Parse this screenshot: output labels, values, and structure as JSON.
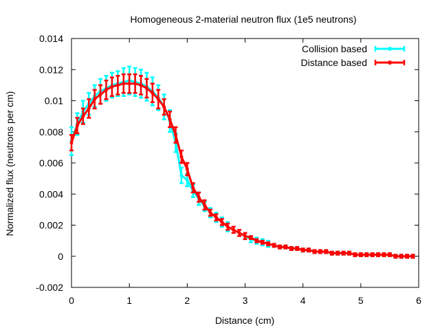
{
  "chart_data": {
    "type": "line",
    "title": "Homogeneous 2-material neutron flux (1e5 neutrons)",
    "xlabel": "Distance (cm)",
    "ylabel": "Normalized flux (neutrons per cm)",
    "xlim": [
      0,
      6
    ],
    "ylim": [
      -0.002,
      0.014
    ],
    "x_ticks": [
      "0",
      "1",
      "2",
      "3",
      "4",
      "5",
      "6"
    ],
    "y_ticks": [
      "-0.002",
      "0",
      "0.002",
      "0.004",
      "0.006",
      "0.008",
      "0.01",
      "0.012",
      "0.014"
    ],
    "grid": false,
    "legend": "top-right",
    "x": [
      0,
      0.1,
      0.2,
      0.3,
      0.4,
      0.5,
      0.6,
      0.7,
      0.8,
      0.9,
      1.0,
      1.1,
      1.2,
      1.3,
      1.4,
      1.5,
      1.6,
      1.7,
      1.8,
      1.9,
      2.0,
      2.1,
      2.2,
      2.3,
      2.4,
      2.5,
      2.6,
      2.7,
      2.8,
      2.9,
      3.0,
      3.1,
      3.2,
      3.3,
      3.4,
      3.5,
      3.6,
      3.7,
      3.8,
      3.9,
      4.0,
      4.1,
      4.2,
      4.3,
      4.4,
      4.5,
      4.6,
      4.7,
      4.8,
      4.9,
      5.0,
      5.1,
      5.2,
      5.3,
      5.4,
      5.5,
      5.6,
      5.7,
      5.8,
      5.9
    ],
    "series": [
      {
        "name": "Collision based",
        "color": "#00ffff",
        "values": [
          0.0074,
          0.0085,
          0.0093,
          0.0098,
          0.0103,
          0.0106,
          0.0108,
          0.011,
          0.0111,
          0.0112,
          0.0113,
          0.0112,
          0.0111,
          0.0109,
          0.0106,
          0.0102,
          0.0096,
          0.0087,
          0.0073,
          0.0052,
          0.0049,
          0.0042,
          0.0037,
          0.0032,
          0.0028,
          0.0025,
          0.0022,
          0.0019,
          0.0017,
          0.0015,
          0.0013,
          0.0011,
          0.001,
          0.0009,
          0.0008,
          0.0007,
          0.0006,
          0.0006,
          0.0005,
          0.0005,
          0.0004,
          0.0004,
          0.0003,
          0.0003,
          0.0003,
          0.0002,
          0.0002,
          0.0002,
          0.0002,
          0.0001,
          0.0001,
          0.0001,
          0.0001,
          0.0001,
          0.0001,
          0.0001,
          0.0,
          0.0,
          0.0,
          0.0
        ],
        "errors": [
          0.0009,
          0.0007,
          0.0007,
          0.0007,
          0.0007,
          0.0008,
          0.0008,
          0.0008,
          0.0008,
          0.0009,
          0.0009,
          0.0009,
          0.0009,
          0.0009,
          0.0009,
          0.0008,
          0.0008,
          0.0007,
          0.0006,
          0.0005,
          0.0004,
          0.0004,
          0.0004,
          0.0003,
          0.0003,
          0.0003,
          0.0003,
          0.0003,
          0.0002,
          0.0002,
          0.0002,
          0.0002,
          0.0002,
          0.0002,
          0.0002,
          0.0001,
          0.0001,
          0.0001,
          0.0001,
          0.0001,
          0.0001,
          0.0001,
          0.0001,
          0.0001,
          0.0001,
          0.0001,
          0.0001,
          0.0001,
          0.0001,
          0.0001,
          0.0001,
          0.0001,
          0.0001,
          0.0001,
          0.0001,
          0.0001,
          0.0001,
          0.0001,
          0.0001,
          0.0001
        ]
      },
      {
        "name": "Distance based",
        "color": "#ff0000",
        "values": [
          0.0073,
          0.0084,
          0.009,
          0.0095,
          0.0101,
          0.0104,
          0.0107,
          0.0109,
          0.011,
          0.0111,
          0.0111,
          0.0111,
          0.011,
          0.0108,
          0.0105,
          0.0101,
          0.0096,
          0.0088,
          0.0078,
          0.0064,
          0.0056,
          0.0044,
          0.0038,
          0.0033,
          0.0028,
          0.0025,
          0.0022,
          0.0019,
          0.0017,
          0.0015,
          0.0013,
          0.0012,
          0.001,
          0.0009,
          0.0008,
          0.0007,
          0.0006,
          0.0006,
          0.0005,
          0.0005,
          0.0004,
          0.0004,
          0.0003,
          0.0003,
          0.0003,
          0.0002,
          0.0002,
          0.0002,
          0.0002,
          0.0001,
          0.0001,
          0.0001,
          0.0001,
          0.0001,
          0.0001,
          0.0001,
          0.0,
          0.0,
          0.0,
          0.0
        ],
        "errors": [
          0.0005,
          0.0005,
          0.0005,
          0.0006,
          0.0006,
          0.0006,
          0.0006,
          0.0006,
          0.0006,
          0.0006,
          0.0006,
          0.0006,
          0.0006,
          0.0006,
          0.0006,
          0.0006,
          0.0005,
          0.0005,
          0.0005,
          0.0004,
          0.0004,
          0.0003,
          0.0003,
          0.0003,
          0.0002,
          0.0002,
          0.0002,
          0.0002,
          0.0002,
          0.0002,
          0.0002,
          0.0001,
          0.0001,
          0.0001,
          0.0001,
          0.0001,
          0.0001,
          0.0001,
          0.0001,
          0.0001,
          0.0001,
          0.0001,
          0.0001,
          0.0001,
          0.0001,
          0.0001,
          0.0001,
          0.0001,
          0.0001,
          0.0001,
          0.0001,
          0.0001,
          0.0001,
          0.0001,
          0.0001,
          0.0001,
          0.0001,
          0.0001,
          0.0001,
          0.0001
        ]
      }
    ]
  }
}
